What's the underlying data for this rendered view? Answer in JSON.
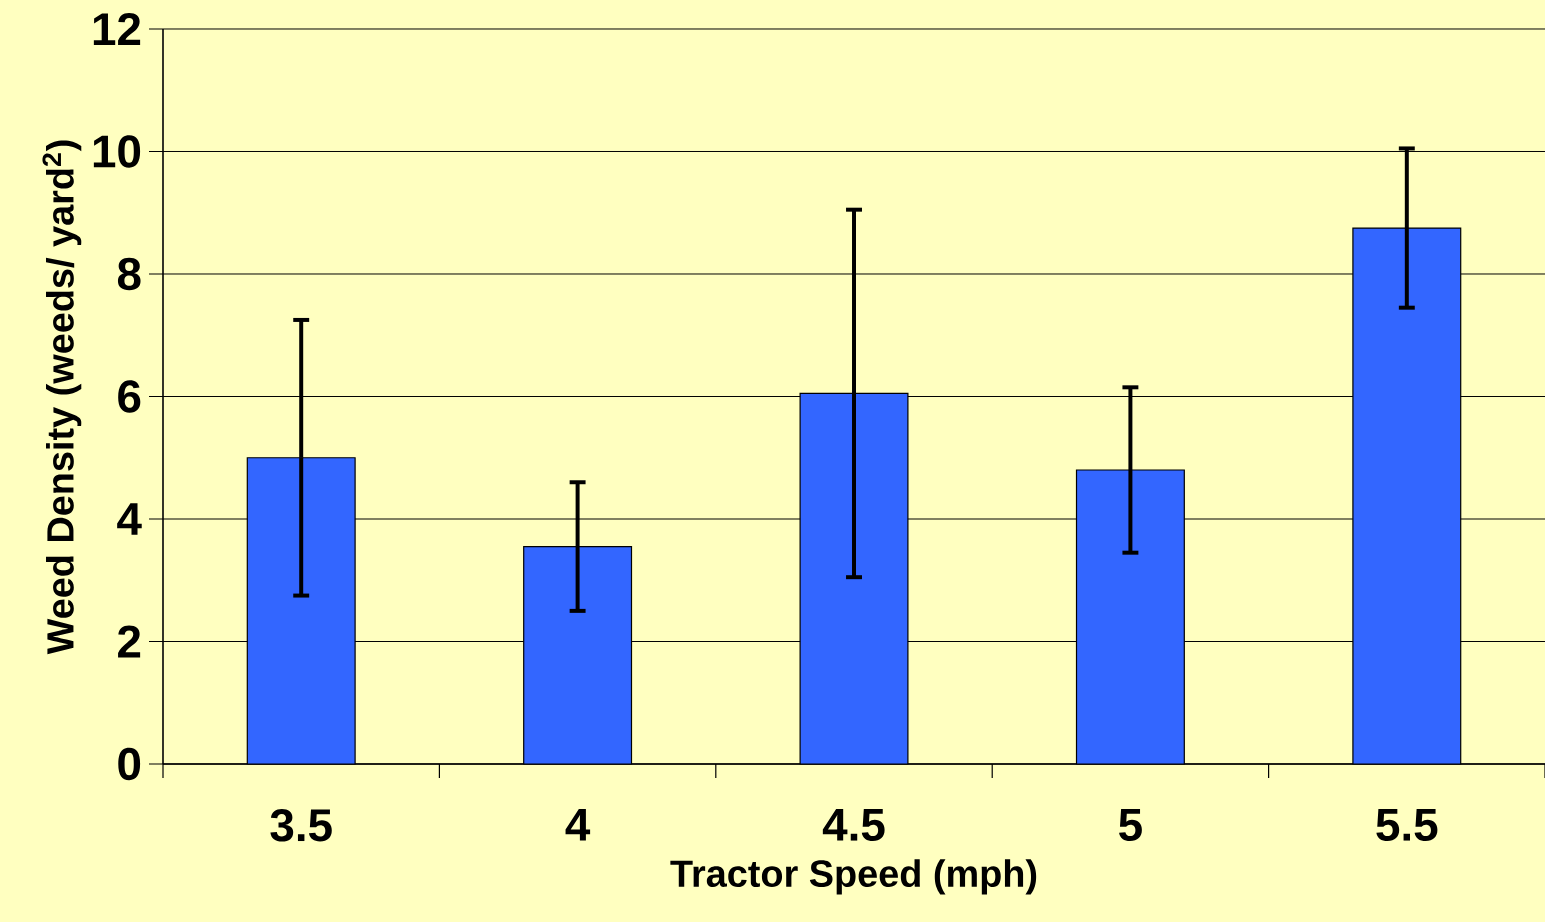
{
  "chart_data": {
    "type": "bar",
    "xlabel": "Tractor Speed (mph)",
    "ylabel": "Weed Density (weeds/ yard$^{2}$)",
    "categories": [
      "3.5",
      "4",
      "4.5",
      "5",
      "5.5"
    ],
    "values": [
      5.0,
      3.55,
      6.05,
      4.8,
      8.75
    ],
    "errors": [
      2.25,
      1.05,
      3.0,
      1.35,
      1.3
    ],
    "color": "#3366ff",
    "ylim": [
      0,
      12
    ],
    "yticks": [
      0,
      2,
      4,
      6,
      8,
      10,
      12
    ],
    "grid": "y"
  }
}
